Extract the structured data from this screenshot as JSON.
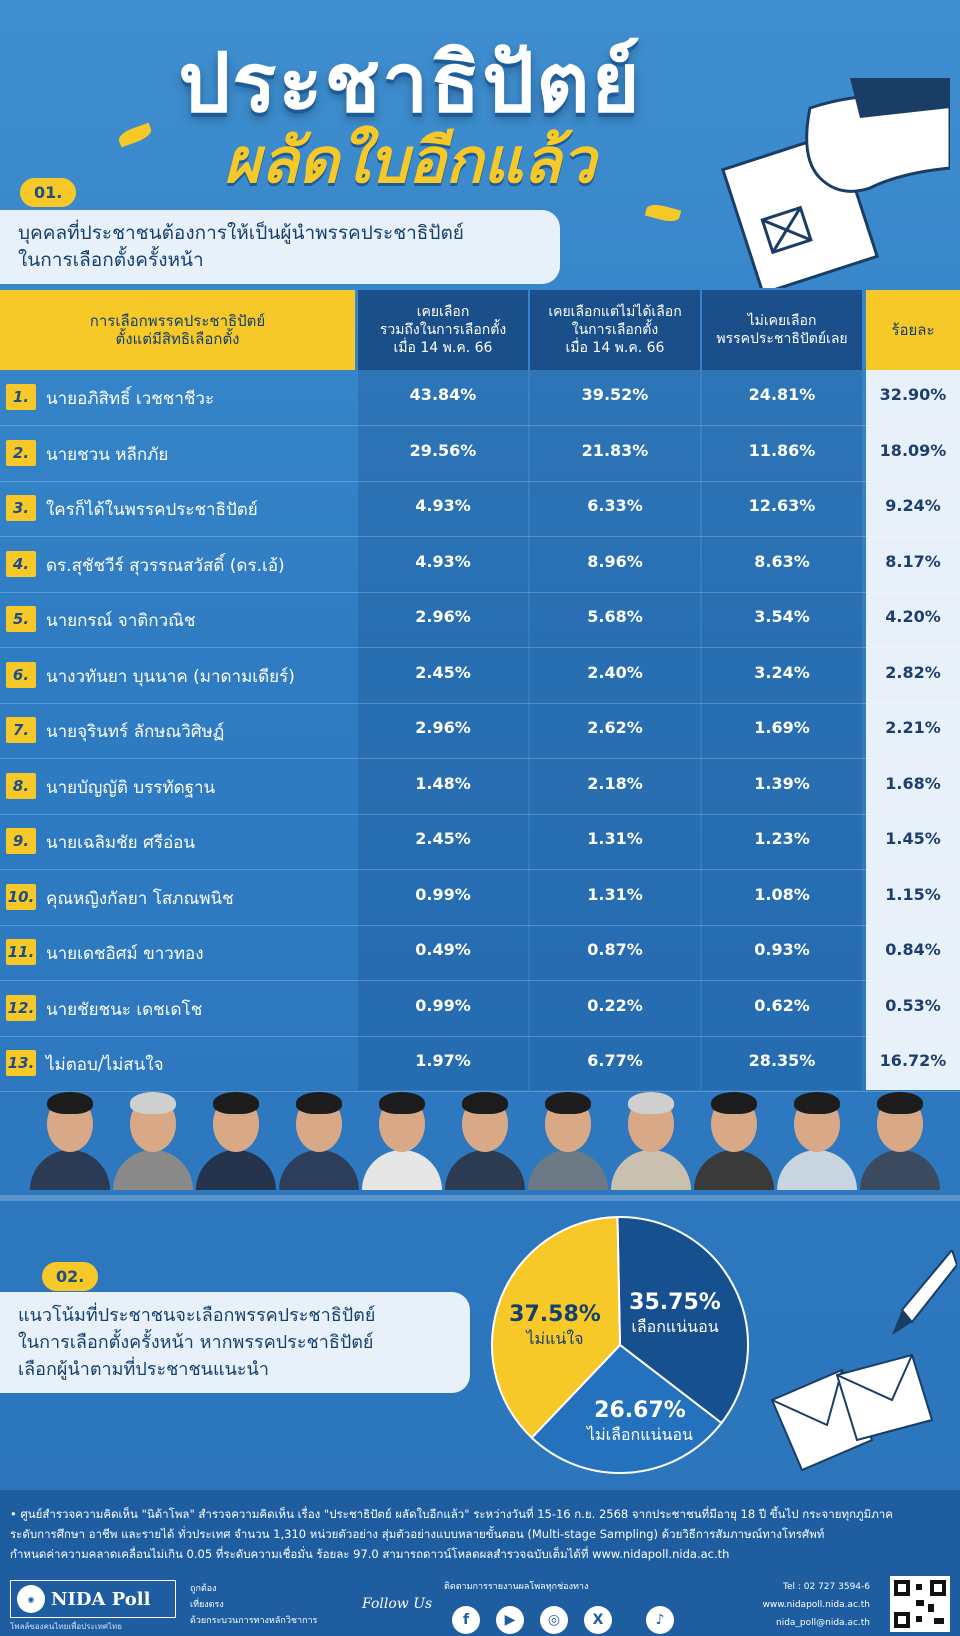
{
  "header": {
    "title": "ประชาธิปัตย์",
    "subtitle": "ผลัดใบอีกแล้ว"
  },
  "section1": {
    "number": "01.",
    "line1": "บุคคลที่ประชาชนต้องการให้เป็นผู้นำพรรคประชาธิปัตย์",
    "line2": "ในการเลือกตั้งครั้งหน้า"
  },
  "table": {
    "header_left_1": "การเลือกพรรคประชาธิปัตย์",
    "header_left_2": "ตั้งแต่มีสิทธิเลือกตั้ง",
    "col1_1": "เคยเลือก",
    "col1_2": "รวมถึงในการเลือกตั้ง",
    "col1_3": "เมื่อ 14 พ.ค. 66",
    "col2_1": "เคยเลือกแต่ไม่ได้เลือก",
    "col2_2": "ในการเลือกตั้ง",
    "col2_3": "เมื่อ 14 พ.ค. 66",
    "col3_1": "ไม่เคยเลือก",
    "col3_2": "พรรคประชาธิปัตย์เลย",
    "col4": "ร้อยละ"
  },
  "chart_data": [
    {
      "type": "table",
      "columns": [
        "เคยเลือก รวมถึงในการเลือกตั้ง เมื่อ 14 พ.ค. 66",
        "เคยเลือกแต่ไม่ได้เลือก ในการเลือกตั้ง เมื่อ 14 พ.ค. 66",
        "ไม่เคยเลือก พรรคประชาธิปัตย์เลย",
        "ร้อยละ"
      ],
      "rows": [
        {
          "rank": "1.",
          "name": "นายอภิสิทธิ์ เวชชาชีวะ",
          "values": [
            "43.84%",
            "39.52%",
            "24.81%",
            "32.90%"
          ]
        },
        {
          "rank": "2.",
          "name": "นายชวน หลีกภัย",
          "values": [
            "29.56%",
            "21.83%",
            "11.86%",
            "18.09%"
          ]
        },
        {
          "rank": "3.",
          "name": "ใครก็ได้ในพรรคประชาธิปัตย์",
          "values": [
            "4.93%",
            "6.33%",
            "12.63%",
            "9.24%"
          ]
        },
        {
          "rank": "4.",
          "name": "ดร.สุชัชวีร์ สุวรรณสวัสดิ์ (ดร.เอ้)",
          "values": [
            "4.93%",
            "8.96%",
            "8.63%",
            "8.17%"
          ]
        },
        {
          "rank": "5.",
          "name": "นายกรณ์ จาติกวณิช",
          "values": [
            "2.96%",
            "5.68%",
            "3.54%",
            "4.20%"
          ]
        },
        {
          "rank": "6.",
          "name": "นางวทันยา บุนนาค (มาดามเดียร์)",
          "values": [
            "2.45%",
            "2.40%",
            "3.24%",
            "2.82%"
          ]
        },
        {
          "rank": "7.",
          "name": "นายจุรินทร์ ลักษณวิศิษฏ์",
          "values": [
            "2.96%",
            "2.62%",
            "1.69%",
            "2.21%"
          ]
        },
        {
          "rank": "8.",
          "name": "นายบัญญัติ บรรทัดฐาน",
          "values": [
            "1.48%",
            "2.18%",
            "1.39%",
            "1.68%"
          ]
        },
        {
          "rank": "9.",
          "name": "นายเฉลิมชัย ศรีอ่อน",
          "values": [
            "2.45%",
            "1.31%",
            "1.23%",
            "1.45%"
          ]
        },
        {
          "rank": "10.",
          "name": "คุณหญิงกัลยา โสภณพนิช",
          "values": [
            "0.99%",
            "1.31%",
            "1.08%",
            "1.15%"
          ]
        },
        {
          "rank": "11.",
          "name": "นายเดชอิศม์ ขาวทอง",
          "values": [
            "0.49%",
            "0.87%",
            "0.93%",
            "0.84%"
          ]
        },
        {
          "rank": "12.",
          "name": "นายชัยชนะ เดชเดโช",
          "values": [
            "0.99%",
            "0.22%",
            "0.62%",
            "0.53%"
          ]
        },
        {
          "rank": "13.",
          "name": "ไม่ตอบ/ไม่สนใจ",
          "values": [
            "1.97%",
            "6.77%",
            "28.35%",
            "16.72%"
          ]
        }
      ]
    },
    {
      "type": "pie",
      "slices": [
        {
          "label": "เลือกแน่นอน",
          "value": 35.75,
          "display": "35.75%",
          "color": "#17508f"
        },
        {
          "label": "ไม่เลือกแน่นอน",
          "value": 26.67,
          "display": "26.67%",
          "color": "#2471bd"
        },
        {
          "label": "ไม่แน่ใจ",
          "value": 37.58,
          "display": "37.58%",
          "color": "#f7c928"
        }
      ]
    }
  ],
  "section2": {
    "number": "02.",
    "line1": "แนวโน้มที่ประชาชนจะเลือกพรรคประชาธิปัตย์",
    "line2": "ในการเลือกตั้งครั้งหน้า หากพรรคประชาธิปัตย์",
    "line3": "เลือกผู้นำตามที่ประชาชนแนะนำ"
  },
  "footer": {
    "note1": "• ศูนย์สำรวจความคิดเห็น \"นิด้าโพล\" สำรวจความคิดเห็น เรื่อง \"ประชาธิปัตย์ ผลัดใบอีกแล้ว\" ระหว่างวันที่ 15-16 ก.ย. 2568 จากประชาชนที่มีอายุ 18 ปี ขึ้นไป กระจายทุกภูมิภาค",
    "note2": "ระดับการศึกษา อาชีพ และรายได้ ทั่วประเทศ จำนวน 1,310 หน่วยตัวอย่าง สุ่มตัวอย่างแบบหลายขั้นตอน (Multi-stage Sampling) ด้วยวิธีการสัมภาษณ์ทางโทรศัพท์",
    "note3": "กำหนดค่าความคลาดเคลื่อนไม่เกิน 0.05 ที่ระดับความเชื่อมั่น ร้อยละ 97.0 สามารถดาวน์โหลดผลสำรวจฉบับเต็มได้ที่ www.nidapoll.nida.ac.th",
    "logo": "NIDA Poll",
    "logo_sub": "โพลล์ของคนไทยเพื่อประเทศไทย",
    "tag1": "ถูกต้อง",
    "tag2": "เที่ยงตรง",
    "tag3": "ด้วยกระบวนการทางหลักวิชาการ",
    "follow": "Follow Us",
    "follow_note": "ติดตามการรายงานผลโพลทุกช่องทาง",
    "tel": "Tel : 02 727 3594-6",
    "web": "www.nidapoll.nida.ac.th",
    "email": "nida_poll@nida.ac.th"
  }
}
